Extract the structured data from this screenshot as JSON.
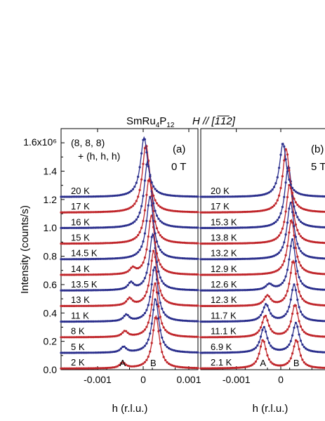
{
  "figure_title": {
    "compound_main": "SmRu",
    "compound_sub1": "4",
    "compound_mid": "P",
    "compound_sub2": "12",
    "field_dir": "H // [1̅1̅2]"
  },
  "chart_data": [
    {
      "panel": "(a)",
      "type": "line",
      "field_label": "0 T",
      "reflection_label": [
        "(8, 8, 8)",
        "+ (h, h, h)"
      ],
      "ylabel": "Intensity  (counts/s)",
      "xlabel": "h  (r.l.u.)",
      "xlim": [
        -0.0018,
        0.0012
      ],
      "ylim": [
        0,
        1700000
      ],
      "yticks": [
        {
          "value": 0,
          "label": "0.0"
        },
        {
          "value": 200000,
          "label": "0.2"
        },
        {
          "value": 400000,
          "label": "0.4"
        },
        {
          "value": 600000,
          "label": "0.6"
        },
        {
          "value": 800000,
          "label": "0.8"
        },
        {
          "value": 1000000,
          "label": "1.0"
        },
        {
          "value": 1200000,
          "label": "1.2"
        },
        {
          "value": 1400000,
          "label": "1.4"
        },
        {
          "value": 1600000,
          "label": "1.6x10⁶"
        }
      ],
      "xticks": [
        {
          "value": -0.001,
          "label": "-0.001"
        },
        {
          "value": 0,
          "label": "0"
        },
        {
          "value": 0.001,
          "label": "0.001"
        }
      ],
      "peak_labels": [
        {
          "text": "A",
          "h": -0.00045
        },
        {
          "text": "B",
          "h": 0.00022
        }
      ],
      "offset_step": 110000,
      "series": [
        {
          "name": "2 K",
          "color": "#c0262b",
          "baseline": 0,
          "peaks": [
            {
              "h": -0.00045,
              "amp": 40000,
              "w": 0.00015
            },
            {
              "h": 0.00028,
              "amp": 370000,
              "w": 0.00018
            }
          ]
        },
        {
          "name": "5 K",
          "color": "#2a2e8c",
          "baseline": 110000,
          "peaks": [
            {
              "h": -0.00043,
              "amp": 40000,
              "w": 0.00015
            },
            {
              "h": 0.00027,
              "amp": 380000,
              "w": 0.00018
            }
          ]
        },
        {
          "name": "8 K",
          "color": "#c0262b",
          "baseline": 220000,
          "peaks": [
            {
              "h": -0.0004,
              "amp": 40000,
              "w": 0.00015
            },
            {
              "h": 0.00026,
              "amp": 380000,
              "w": 0.00018
            }
          ]
        },
        {
          "name": "11 K",
          "color": "#2a2e8c",
          "baseline": 330000,
          "peaks": [
            {
              "h": -0.00037,
              "amp": 45000,
              "w": 0.00015
            },
            {
              "h": 0.00025,
              "amp": 390000,
              "w": 0.00018
            }
          ]
        },
        {
          "name": "13 K",
          "color": "#c0262b",
          "baseline": 440000,
          "peaks": [
            {
              "h": -0.0003,
              "amp": 50000,
              "w": 0.00015
            },
            {
              "h": 0.00023,
              "amp": 390000,
              "w": 0.00018
            }
          ]
        },
        {
          "name": "13.5 K",
          "color": "#2a2e8c",
          "baseline": 550000,
          "peaks": [
            {
              "h": -0.00027,
              "amp": 50000,
              "w": 0.00015
            },
            {
              "h": 0.00021,
              "amp": 400000,
              "w": 0.00018
            }
          ]
        },
        {
          "name": "14 K",
          "color": "#c0262b",
          "baseline": 660000,
          "peaks": [
            {
              "h": -0.00023,
              "amp": 40000,
              "w": 0.00015
            },
            {
              "h": 0.00018,
              "amp": 420000,
              "w": 0.00018
            }
          ]
        },
        {
          "name": "14.5 K",
          "color": "#2a2e8c",
          "baseline": 770000,
          "peaks": [
            {
              "h": 0.00015,
              "amp": 440000,
              "w": 0.00019
            }
          ]
        },
        {
          "name": "15 K",
          "color": "#c0262b",
          "baseline": 880000,
          "peaks": [
            {
              "h": 0.00013,
              "amp": 460000,
              "w": 0.00019
            }
          ]
        },
        {
          "name": "16 K",
          "color": "#2a2e8c",
          "baseline": 990000,
          "peaks": [
            {
              "h": 0.0001,
              "amp": 480000,
              "w": 0.00019
            }
          ]
        },
        {
          "name": "17 K",
          "color": "#c0262b",
          "baseline": 1100000,
          "peaks": [
            {
              "h": 6e-05,
              "amp": 480000,
              "w": 0.00019
            }
          ]
        },
        {
          "name": "20 K",
          "color": "#2a2e8c",
          "baseline": 1210000,
          "peaks": [
            {
              "h": 2e-05,
              "amp": 420000,
              "w": 0.00019
            }
          ]
        }
      ]
    },
    {
      "panel": "(b)",
      "type": "line",
      "field_label": "5 T",
      "xlabel": "h  (r.l.u.)",
      "xlim": [
        -0.0018,
        0.0012
      ],
      "ylim": [
        0,
        1700000
      ],
      "xticks": [
        {
          "value": -0.001,
          "label": "-0.001"
        },
        {
          "value": 0,
          "label": "0"
        }
      ],
      "peak_labels": [
        {
          "text": "A",
          "h": -0.0004
        },
        {
          "text": "B",
          "h": 0.00035
        }
      ],
      "series": [
        {
          "name": "2.1 K",
          "color": "#c0262b",
          "baseline": 0,
          "peaks": [
            {
              "h": -0.0004,
              "amp": 200000,
              "w": 0.00018
            },
            {
              "h": 0.00035,
              "amp": 200000,
              "w": 0.00018
            }
          ]
        },
        {
          "name": "6.9 K",
          "color": "#2a2e8c",
          "baseline": 110000,
          "peaks": [
            {
              "h": -0.00038,
              "amp": 180000,
              "w": 0.00018
            },
            {
              "h": 0.00034,
              "amp": 210000,
              "w": 0.00018
            }
          ]
        },
        {
          "name": "11.1 K",
          "color": "#c0262b",
          "baseline": 220000,
          "peaks": [
            {
              "h": -0.00035,
              "amp": 150000,
              "w": 0.00018
            },
            {
              "h": 0.00032,
              "amp": 230000,
              "w": 0.00018
            }
          ]
        },
        {
          "name": "11.7 K",
          "color": "#2a2e8c",
          "baseline": 330000,
          "peaks": [
            {
              "h": -0.00033,
              "amp": 120000,
              "w": 0.00018
            },
            {
              "h": 0.0003,
              "amp": 260000,
              "w": 0.00018
            }
          ]
        },
        {
          "name": "12.3 K",
          "color": "#c0262b",
          "baseline": 440000,
          "peaks": [
            {
              "h": -0.0003,
              "amp": 70000,
              "w": 0.00018
            },
            {
              "h": 0.00028,
              "amp": 320000,
              "w": 0.00018
            }
          ]
        },
        {
          "name": "12.6 K",
          "color": "#2a2e8c",
          "baseline": 550000,
          "peaks": [
            {
              "h": -0.00026,
              "amp": 40000,
              "w": 0.00018
            },
            {
              "h": 0.00026,
              "amp": 360000,
              "w": 0.00018
            }
          ]
        },
        {
          "name": "12.9 K",
          "color": "#c0262b",
          "baseline": 660000,
          "peaks": [
            {
              "h": 0.00024,
              "amp": 390000,
              "w": 0.00019
            }
          ]
        },
        {
          "name": "13.2 K",
          "color": "#2a2e8c",
          "baseline": 770000,
          "peaks": [
            {
              "h": 0.00022,
              "amp": 400000,
              "w": 0.00019
            }
          ]
        },
        {
          "name": "13.8 K",
          "color": "#c0262b",
          "baseline": 880000,
          "peaks": [
            {
              "h": 0.0002,
              "amp": 420000,
              "w": 0.00019
            }
          ]
        },
        {
          "name": "15.3 K",
          "color": "#2a2e8c",
          "baseline": 990000,
          "peaks": [
            {
              "h": 0.00017,
              "amp": 440000,
              "w": 0.00019
            }
          ]
        },
        {
          "name": "17 K",
          "color": "#c0262b",
          "baseline": 1100000,
          "peaks": [
            {
              "h": 0.00012,
              "amp": 450000,
              "w": 0.00019
            }
          ]
        },
        {
          "name": "20 K",
          "color": "#2a2e8c",
          "baseline": 1210000,
          "peaks": [
            {
              "h": 5e-05,
              "amp": 380000,
              "w": 0.00019
            }
          ]
        }
      ]
    }
  ]
}
